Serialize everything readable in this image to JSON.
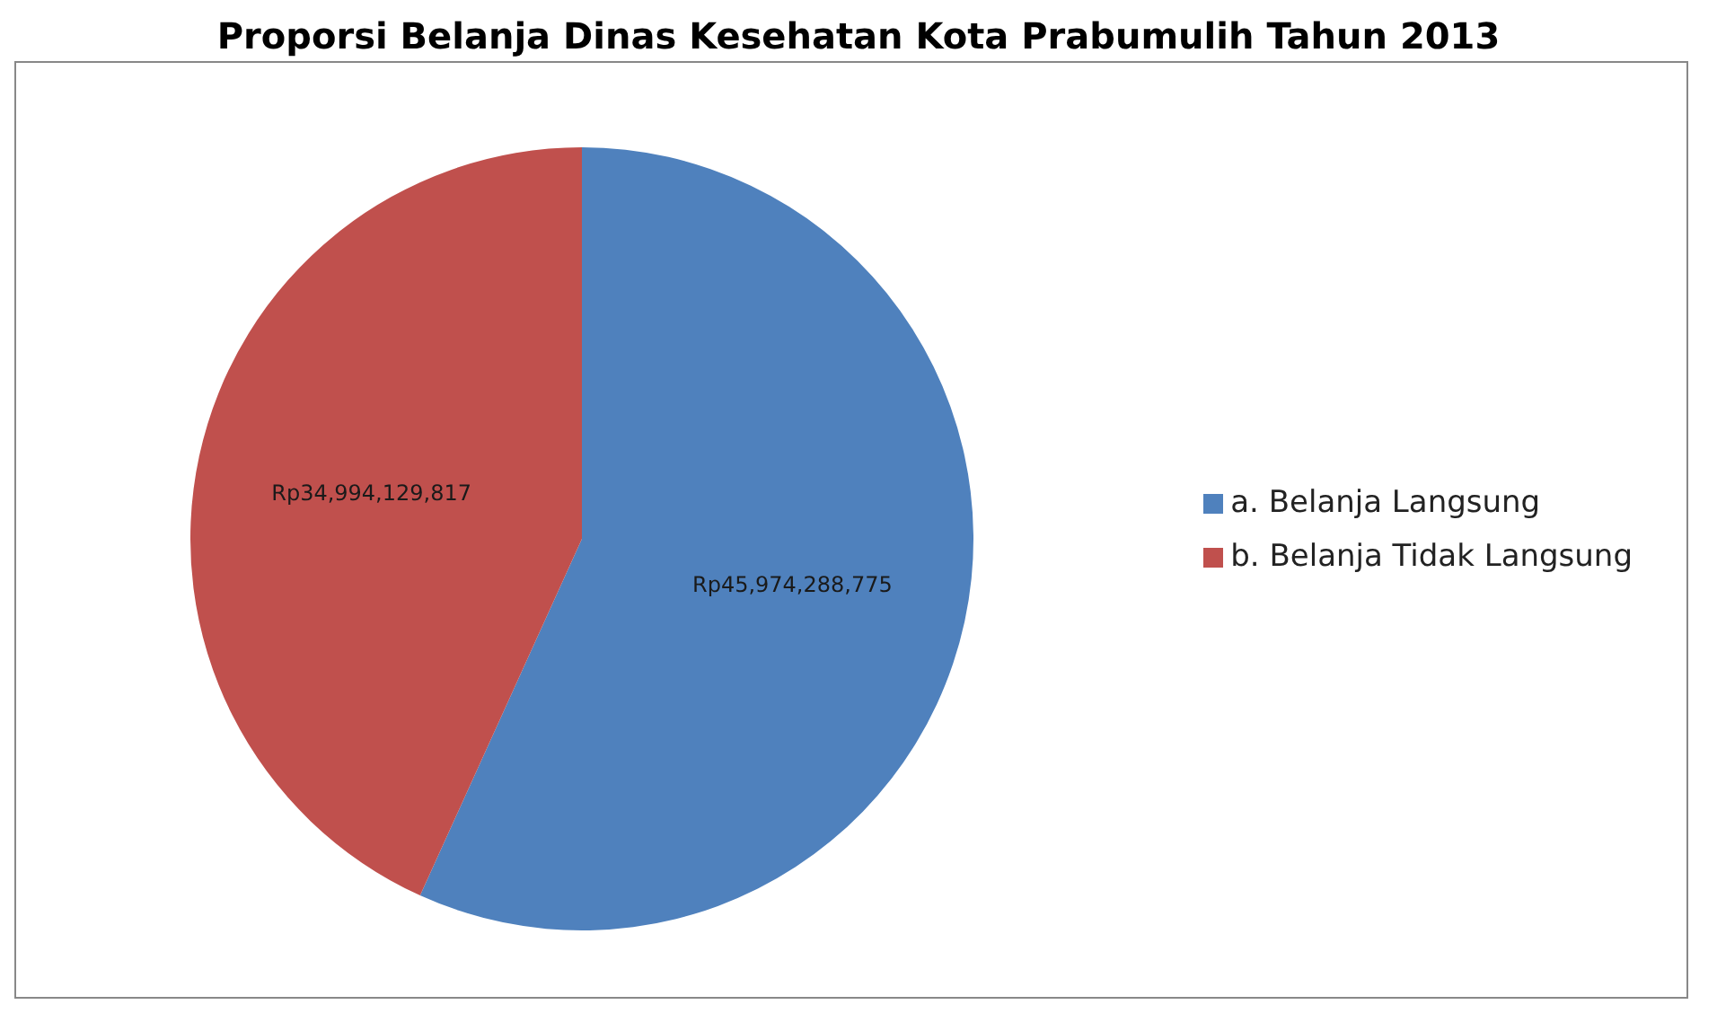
{
  "chart_data": {
    "type": "pie",
    "title": "Proporsi Belanja Dinas Kesehatan Kota Prabumulih Tahun 2013",
    "categories": [
      "a. Belanja Langsung",
      "b. Belanja Tidak Langsung"
    ],
    "values": [
      45974288775,
      34994129817
    ],
    "colors": [
      "#4f81bd",
      "#c0504d"
    ],
    "value_labels": [
      "Rp45,974,288,775",
      "Rp34,994,129,817"
    ],
    "legend": "right"
  }
}
